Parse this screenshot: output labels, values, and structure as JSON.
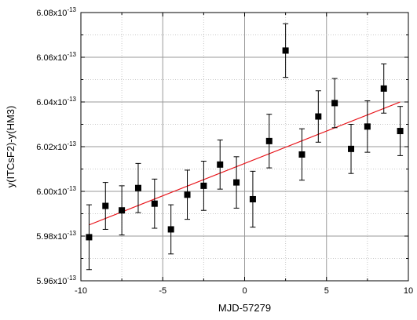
{
  "chart_data": {
    "type": "scatter",
    "title": "",
    "xlabel": "MJD-57279",
    "ylabel": "y(ITCsF2)-y(HM3)",
    "xlim": [
      -10,
      10
    ],
    "ylim": [
      5.96e-13,
      6.08e-13
    ],
    "x_ticks": [
      -10,
      -5,
      0,
      5,
      10
    ],
    "x_tick_labels": [
      "-10",
      "-5",
      "0",
      "5",
      "10"
    ],
    "y_ticks": [
      5.96e-13,
      5.98e-13,
      6e-13,
      6.02e-13,
      6.04e-13,
      6.06e-13,
      6.08e-13
    ],
    "y_tick_mantissa": [
      "5.96x10",
      "5.98x10",
      "6.00x10",
      "6.02x10",
      "6.04x10",
      "6.06x10",
      "6.08x10"
    ],
    "y_tick_exponent": "-13",
    "grid": true,
    "series": [
      {
        "marker": "square",
        "color": "#000000",
        "points": [
          {
            "x": -9.5,
            "y": 5.9795e-13,
            "err": 1.45e-15
          },
          {
            "x": -8.5,
            "y": 5.9935e-13,
            "err": 1.05e-15
          },
          {
            "x": -7.5,
            "y": 5.9915e-13,
            "err": 1.1e-15
          },
          {
            "x": -6.5,
            "y": 6.0015e-13,
            "err": 1.1e-15
          },
          {
            "x": -5.5,
            "y": 5.9945e-13,
            "err": 1.1e-15
          },
          {
            "x": -4.5,
            "y": 5.983e-13,
            "err": 1.1e-15
          },
          {
            "x": -3.5,
            "y": 5.9985e-13,
            "err": 1.1e-15
          },
          {
            "x": -2.5,
            "y": 6.0025e-13,
            "err": 1.1e-15
          },
          {
            "x": -1.5,
            "y": 6.012e-13,
            "err": 1.1e-15
          },
          {
            "x": -0.5,
            "y": 6.004e-13,
            "err": 1.15e-15
          },
          {
            "x": 0.5,
            "y": 5.9965e-13,
            "err": 1.25e-15
          },
          {
            "x": 1.5,
            "y": 6.0225e-13,
            "err": 1.2e-15
          },
          {
            "x": 2.5,
            "y": 6.063e-13,
            "err": 1.2e-15
          },
          {
            "x": 3.5,
            "y": 6.0165e-13,
            "err": 1.15e-15
          },
          {
            "x": 4.5,
            "y": 6.0335e-13,
            "err": 1.15e-15
          },
          {
            "x": 5.5,
            "y": 6.0395e-13,
            "err": 1.1e-15
          },
          {
            "x": 6.5,
            "y": 6.019e-13,
            "err": 1.1e-15
          },
          {
            "x": 7.5,
            "y": 6.029e-13,
            "err": 1.15e-15
          },
          {
            "x": 8.5,
            "y": 6.046e-13,
            "err": 1.1e-15
          },
          {
            "x": 9.5,
            "y": 6.027e-13,
            "err": 1.1e-15
          }
        ]
      }
    ],
    "fit_line": {
      "color": "#e8141a",
      "x": [
        -9.5,
        9.5
      ],
      "y": [
        5.985e-13,
        6.04e-13
      ]
    }
  }
}
